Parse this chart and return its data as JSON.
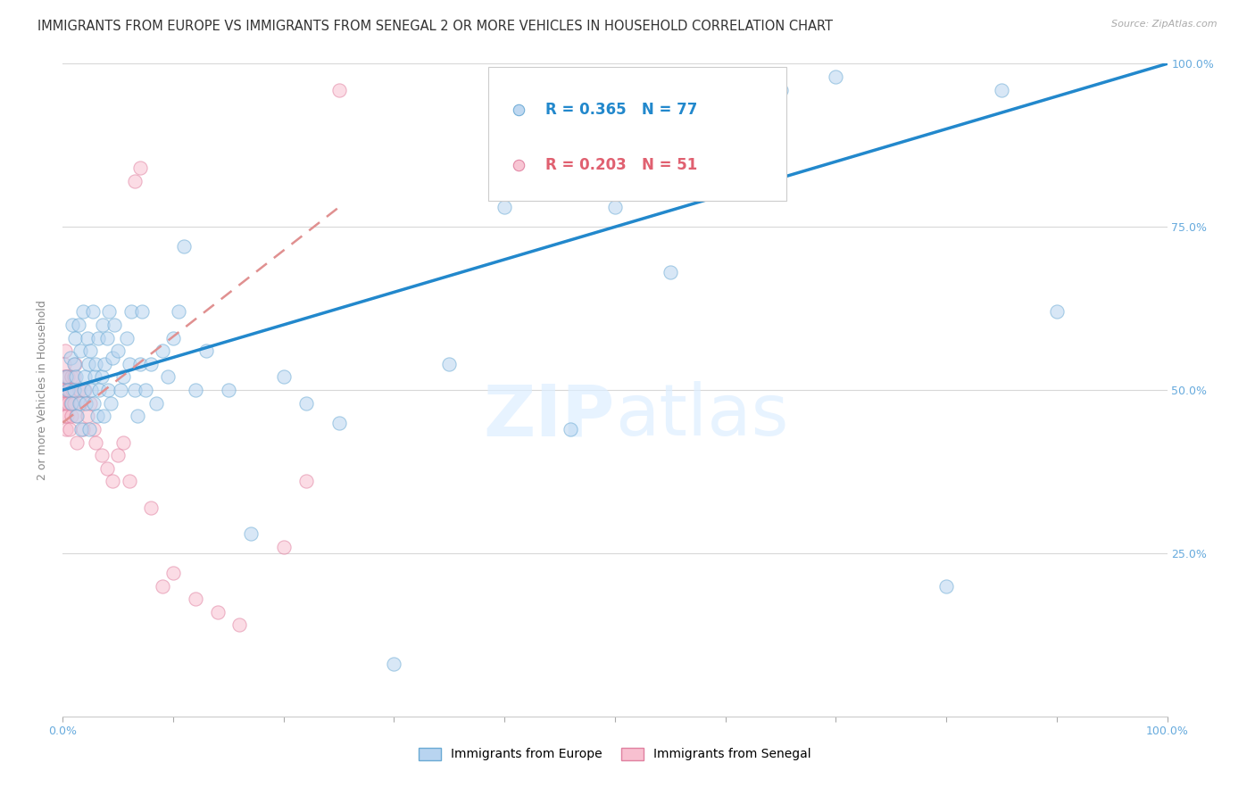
{
  "title": "IMMIGRANTS FROM EUROPE VS IMMIGRANTS FROM SENEGAL 2 OR MORE VEHICLES IN HOUSEHOLD CORRELATION CHART",
  "source": "Source: ZipAtlas.com",
  "ylabel": "2 or more Vehicles in Household",
  "watermark": "ZIPatlas",
  "europe_R": 0.365,
  "europe_N": 77,
  "senegal_R": 0.203,
  "senegal_N": 51,
  "europe_color": "#b8d4f0",
  "europe_edge_color": "#6aaad4",
  "senegal_color": "#f8c0d0",
  "senegal_edge_color": "#e080a0",
  "europe_line_color": "#2288cc",
  "senegal_line_color": "#e09090",
  "background_color": "#ffffff",
  "grid_color": "#d8d8d8",
  "title_color": "#333333",
  "tick_color": "#66aadd",
  "xlim": [
    0.0,
    1.0
  ],
  "ylim": [
    0.0,
    1.0
  ],
  "europe_x": [
    0.003,
    0.005,
    0.007,
    0.008,
    0.009,
    0.01,
    0.01,
    0.011,
    0.012,
    0.013,
    0.014,
    0.015,
    0.016,
    0.017,
    0.018,
    0.019,
    0.02,
    0.021,
    0.022,
    0.023,
    0.024,
    0.025,
    0.026,
    0.027,
    0.028,
    0.029,
    0.03,
    0.031,
    0.032,
    0.033,
    0.035,
    0.036,
    0.037,
    0.038,
    0.04,
    0.041,
    0.042,
    0.043,
    0.045,
    0.047,
    0.05,
    0.052,
    0.055,
    0.058,
    0.06,
    0.062,
    0.065,
    0.068,
    0.07,
    0.072,
    0.075,
    0.08,
    0.085,
    0.09,
    0.095,
    0.1,
    0.105,
    0.11,
    0.12,
    0.13,
    0.15,
    0.17,
    0.2,
    0.22,
    0.25,
    0.3,
    0.35,
    0.4,
    0.46,
    0.5,
    0.55,
    0.6,
    0.65,
    0.7,
    0.8,
    0.85,
    0.9
  ],
  "europe_y": [
    0.52,
    0.5,
    0.55,
    0.48,
    0.6,
    0.54,
    0.5,
    0.58,
    0.52,
    0.46,
    0.6,
    0.48,
    0.56,
    0.44,
    0.62,
    0.5,
    0.52,
    0.48,
    0.58,
    0.54,
    0.44,
    0.56,
    0.5,
    0.62,
    0.48,
    0.52,
    0.54,
    0.46,
    0.58,
    0.5,
    0.52,
    0.6,
    0.46,
    0.54,
    0.58,
    0.5,
    0.62,
    0.48,
    0.55,
    0.6,
    0.56,
    0.5,
    0.52,
    0.58,
    0.54,
    0.62,
    0.5,
    0.46,
    0.54,
    0.62,
    0.5,
    0.54,
    0.48,
    0.56,
    0.52,
    0.58,
    0.62,
    0.72,
    0.5,
    0.56,
    0.5,
    0.28,
    0.52,
    0.48,
    0.45,
    0.08,
    0.54,
    0.78,
    0.44,
    0.78,
    0.68,
    0.9,
    0.96,
    0.98,
    0.2,
    0.96,
    0.62
  ],
  "senegal_x": [
    0.0,
    0.0,
    0.0,
    0.001,
    0.001,
    0.002,
    0.002,
    0.002,
    0.003,
    0.003,
    0.003,
    0.004,
    0.004,
    0.005,
    0.005,
    0.006,
    0.006,
    0.007,
    0.008,
    0.008,
    0.009,
    0.01,
    0.01,
    0.011,
    0.012,
    0.013,
    0.015,
    0.016,
    0.018,
    0.02,
    0.022,
    0.025,
    0.028,
    0.03,
    0.035,
    0.04,
    0.045,
    0.05,
    0.055,
    0.06,
    0.065,
    0.07,
    0.08,
    0.09,
    0.1,
    0.12,
    0.14,
    0.16,
    0.2,
    0.22,
    0.25
  ],
  "senegal_y": [
    0.52,
    0.5,
    0.48,
    0.54,
    0.5,
    0.46,
    0.52,
    0.56,
    0.48,
    0.52,
    0.44,
    0.5,
    0.46,
    0.52,
    0.48,
    0.5,
    0.44,
    0.48,
    0.52,
    0.46,
    0.5,
    0.52,
    0.48,
    0.54,
    0.46,
    0.42,
    0.5,
    0.48,
    0.44,
    0.5,
    0.46,
    0.48,
    0.44,
    0.42,
    0.4,
    0.38,
    0.36,
    0.4,
    0.42,
    0.36,
    0.82,
    0.84,
    0.32,
    0.2,
    0.22,
    0.18,
    0.16,
    0.14,
    0.26,
    0.36,
    0.96
  ],
  "europe_trend": [
    0.5,
    1.0
  ],
  "senegal_trend_x": [
    0.0,
    0.25
  ],
  "senegal_trend_y": [
    0.45,
    0.78
  ],
  "marker_size": 120,
  "marker_alpha": 0.55,
  "title_fontsize": 10.5,
  "tick_fontsize": 9,
  "legend_fontsize": 12,
  "ylabel_fontsize": 9
}
